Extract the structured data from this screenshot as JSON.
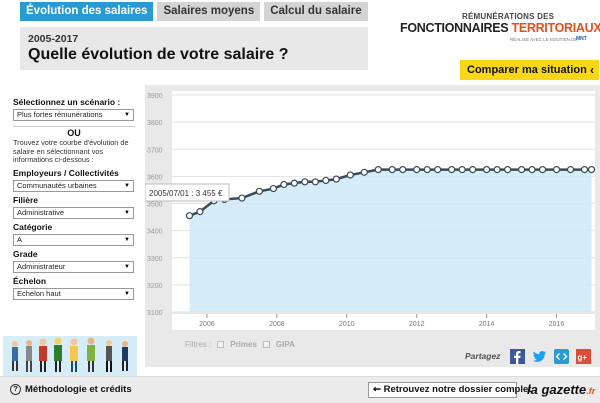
{
  "tabs": [
    {
      "label": "Évolution des salaires",
      "active": true
    },
    {
      "label": "Salaires moyens",
      "active": false
    },
    {
      "label": "Calcul du salaire",
      "active": false
    }
  ],
  "logo": {
    "line1": "RÉMUNÉRATIONS DES",
    "line2a": "FONCTIONNAIRES ",
    "line2b": "TERRITORIAUX",
    "line3": "RÉALISÉ AVEC LE SOUTIEN DE",
    "partner": "MNT"
  },
  "header": {
    "period": "2005-2017",
    "title": "Quelle évolution de votre salaire ?"
  },
  "compare_button": {
    "label": "Comparer ma situation",
    "icon": "chevron-left-icon"
  },
  "sidebar": {
    "scenario_label": "Sélectionnez un scénario :",
    "scenario_value": "Plus fortes rémunérations",
    "or_label": "OU",
    "description": "Trouvez votre courbe d'évolution de salaire en sélectionnant vos informations ci-dessous :",
    "employer_label": "Employeurs / Collectivités",
    "employer_value": "Communautés urbaines",
    "filiere_label": "Filière",
    "filiere_value": "Administrative",
    "categorie_label": "Catégorie",
    "categorie_value": "A",
    "grade_label": "Grade",
    "grade_value": "Administrateur",
    "echelon_label": "Échelon",
    "echelon_value": "Echelon haut"
  },
  "filters": {
    "label": "Filtres :",
    "items": [
      "Primes",
      "GIPA"
    ]
  },
  "share": {
    "label": "Partagez",
    "icons": [
      "facebook-icon",
      "twitter-icon",
      "embed-icon",
      "google-plus-icon"
    ]
  },
  "bottom": {
    "method_label": "Méthodologie et crédits",
    "dossier_label": "Retrouvez notre dossier complet",
    "gazette_label": "la gazette",
    "gazette_suffix": ".fr"
  },
  "tooltip": {
    "text": "2005/07/01 : 3 455 €"
  },
  "colors": {
    "accent": "#2a9bd2",
    "button": "#f7d716",
    "line": "#3a4a56",
    "area": "#cfe9f7"
  },
  "chart_data": {
    "type": "area",
    "title": "",
    "xlabel": "",
    "ylabel": "",
    "x_ticks": [
      2006,
      2008,
      2010,
      2012,
      2014,
      2016
    ],
    "y_ticks": [
      "3100",
      "3200",
      "3300",
      "3400",
      "3500",
      "3600",
      "3700",
      "3800",
      "3900"
    ],
    "xlim": [
      2005,
      2017.1
    ],
    "ylim": [
      3100,
      3900
    ],
    "grid": true,
    "series": [
      {
        "x": [
          2005.5,
          2005.8,
          2006.2,
          2006.5,
          2007.0,
          2007.5,
          2007.9,
          2008.2,
          2008.5,
          2008.8,
          2009.1,
          2009.4,
          2009.7,
          2010.1,
          2010.5,
          2010.9,
          2011.3,
          2011.6,
          2012.0,
          2012.3,
          2012.6,
          2013.0,
          2013.3,
          2013.6,
          2014.0,
          2014.3,
          2014.6,
          2015.0,
          2015.3,
          2015.6,
          2016.0,
          2016.4,
          2016.8,
          2017.0
        ],
        "values": [
          3455,
          3470,
          3510,
          3515,
          3520,
          3545,
          3555,
          3570,
          3575,
          3580,
          3580,
          3585,
          3590,
          3605,
          3615,
          3625,
          3625,
          3625,
          3625,
          3625,
          3625,
          3625,
          3625,
          3625,
          3625,
          3625,
          3625,
          3625,
          3625,
          3625,
          3625,
          3625,
          3625,
          3625
        ]
      }
    ]
  }
}
